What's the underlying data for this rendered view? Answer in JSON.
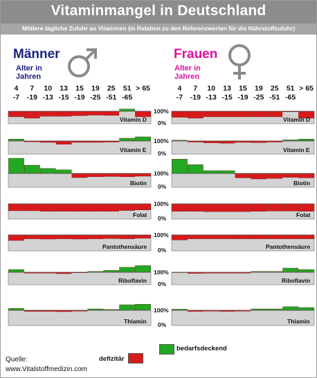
{
  "title": "Vitaminmangel in Deutschland",
  "subtitle": "Mittlere tägliche Zufuhr an Vitaminen (in Relation zu den Referenzwerten für die Nährstoffzufuhr)",
  "men": {
    "heading": "Männer",
    "age_heading": [
      "Alter in",
      "Jahren"
    ]
  },
  "women": {
    "heading": "Frauen",
    "age_heading": [
      "Alter in",
      "Jahren"
    ]
  },
  "age_groups": [
    {
      "line1": "4",
      "line2": "-7"
    },
    {
      "line1": "7",
      "line2": "-19"
    },
    {
      "line1": "10",
      "line2": "-13"
    },
    {
      "line1": "13",
      "line2": "-15"
    },
    {
      "line1": "15",
      "line2": "-19"
    },
    {
      "line1": "19",
      "line2": "-25"
    },
    {
      "line1": "25",
      "line2": "-51"
    },
    {
      "line1": "51",
      "line2": "-65"
    },
    {
      "line1": "> 65",
      "line2": ""
    }
  ],
  "percent_labels": {
    "top": "100%",
    "bottom": "0%"
  },
  "legend": {
    "deficit": "defizitär",
    "sufficient": "bedarfsdeckend"
  },
  "source": {
    "label": "Quelle:",
    "url": "www.Vitalstoffmedizin.com"
  },
  "colors": {
    "deficit": "#d91a1a",
    "sufficient": "#22a822",
    "panel": "#d3d3d3",
    "header_bg": "#8c8c8c",
    "men": "#1a237e",
    "women": "#e0119a"
  },
  "chart_data": {
    "type": "bar",
    "unit": "% of reference value",
    "baseline": 100,
    "categories": [
      "4-7",
      "7-19",
      "10-13",
      "13-15",
      "15-19",
      "19-25",
      "25-51",
      "51-65",
      "> 65"
    ],
    "series": [
      {
        "name": "Vitamin D",
        "men": [
          80,
          75,
          82,
          82,
          84,
          86,
          85,
          108,
          80
        ],
        "women": [
          78,
          75,
          80,
          80,
          80,
          80,
          80,
          98,
          75
        ]
      },
      {
        "name": "Vitamin E",
        "men": [
          107,
          97,
          95,
          88,
          95,
          95,
          96,
          110,
          115
        ],
        "women": [
          103,
          96,
          93,
          92,
          95,
          94,
          96,
          104,
          107
        ]
      },
      {
        "name": "Biotin",
        "men": [
          155,
          130,
          118,
          113,
          85,
          88,
          89,
          88,
          90
        ],
        "women": [
          152,
          132,
          110,
          110,
          84,
          80,
          82,
          86,
          84
        ]
      },
      {
        "name": "Folat",
        "men": [
          75,
          75,
          73,
          73,
          73,
          73,
          73,
          76,
          78
        ],
        "women": [
          73,
          73,
          72,
          72,
          72,
          73,
          74,
          74,
          73
        ]
      },
      {
        "name": "Pantothensäure",
        "men": [
          80,
          86,
          85,
          86,
          85,
          86,
          87,
          86,
          88
        ],
        "women": [
          82,
          86,
          86,
          86,
          86,
          86,
          86,
          86,
          86
        ]
      },
      {
        "name": "Riboflavin",
        "men": [
          110,
          97,
          97,
          95,
          98,
          103,
          107,
          118,
          124
        ],
        "women": [
          100,
          96,
          97,
          97,
          97,
          103,
          103,
          115,
          110
        ]
      },
      {
        "name": "Thiamin",
        "men": [
          107,
          96,
          96,
          95,
          97,
          105,
          103,
          120,
          122
        ],
        "women": [
          104,
          96,
          97,
          96,
          97,
          105,
          105,
          113,
          110
        ]
      }
    ]
  }
}
